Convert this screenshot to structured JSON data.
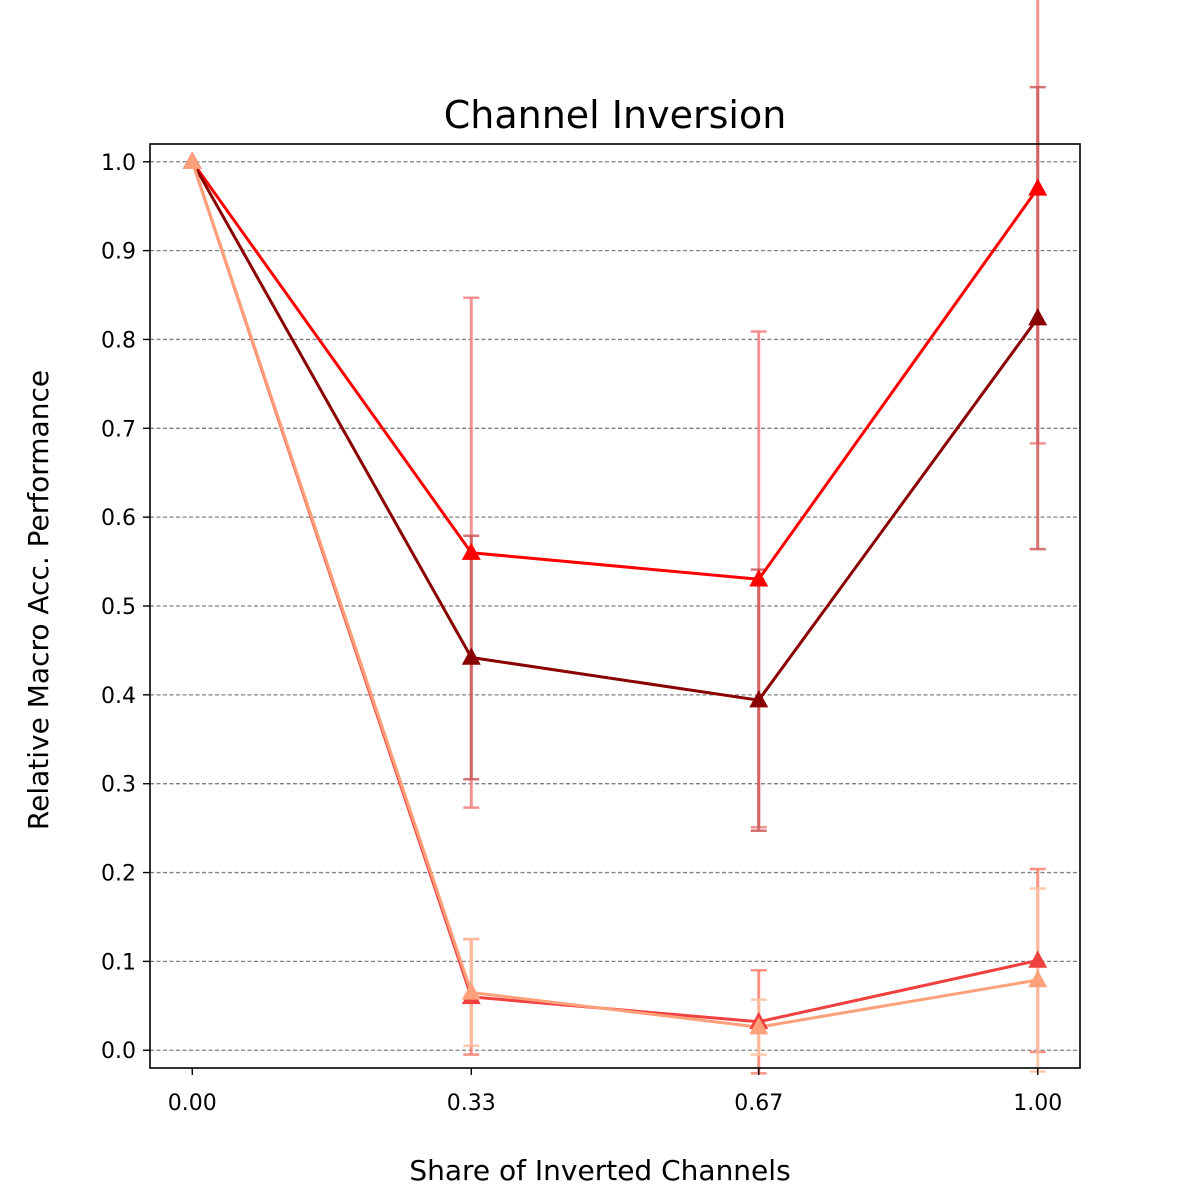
{
  "chart_data": {
    "type": "line",
    "title": "Channel Inversion",
    "xlabel": "Share of Inverted Channels",
    "ylabel": "Relative Macro Acc. Performance",
    "x": [
      0.0,
      0.33,
      0.67,
      1.0
    ],
    "x_tick_labels": [
      "0.00",
      "0.33",
      "0.67",
      "1.00"
    ],
    "y_ticks": [
      0.0,
      0.1,
      0.2,
      0.3,
      0.4,
      0.5,
      0.6,
      0.7,
      0.8,
      0.9,
      1.0
    ],
    "y_tick_labels": [
      "0.0",
      "0.1",
      "0.2",
      "0.3",
      "0.4",
      "0.5",
      "0.6",
      "0.7",
      "0.8",
      "0.9",
      "1.0"
    ],
    "xlim": [
      -0.05,
      1.05
    ],
    "ylim": [
      -0.02,
      1.02
    ],
    "grid": "horizontal dashed",
    "legend": "none",
    "marker": "triangle",
    "series": [
      {
        "color": "#ff0000",
        "errorbar_color": "#f08080",
        "values": [
          1.0,
          0.56,
          0.53,
          0.97
        ],
        "errors": [
          0.0,
          0.287,
          0.279,
          0.287
        ]
      },
      {
        "color": "#8b0000",
        "errorbar_color": "#cd5c5c",
        "values": [
          1.0,
          0.442,
          0.394,
          0.824
        ],
        "errors": [
          0.0,
          0.137,
          0.147,
          0.26
        ]
      },
      {
        "color": "#f04040",
        "errorbar_color": "#fa8072",
        "values": [
          1.0,
          0.06,
          0.032,
          0.101
        ],
        "errors": [
          0.0,
          0.065,
          0.058,
          0.103
        ]
      },
      {
        "color": "#ffa07a",
        "errorbar_color": "#ffc0a0",
        "values": [
          1.0,
          0.065,
          0.026,
          0.079
        ],
        "errors": [
          0.0,
          0.06,
          0.031,
          0.103
        ]
      }
    ]
  }
}
